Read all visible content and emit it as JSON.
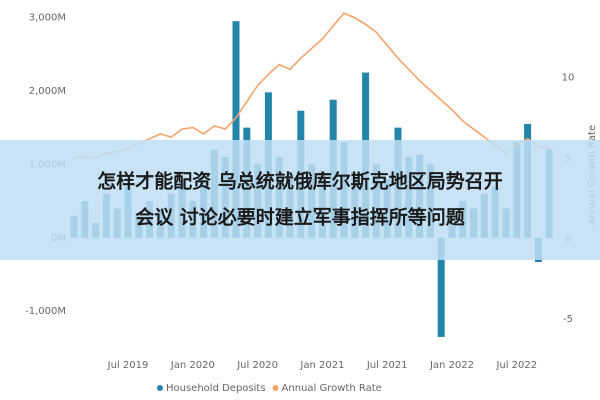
{
  "chart_data": {
    "type": "bar_line",
    "categories": [
      null,
      null,
      null,
      null,
      null,
      "Jul 2019",
      null,
      null,
      null,
      null,
      null,
      "Jan 2020",
      null,
      null,
      null,
      null,
      null,
      "Jul 2020",
      null,
      null,
      null,
      null,
      null,
      "Jan 2021",
      null,
      null,
      null,
      null,
      null,
      "Jul 2021",
      null,
      null,
      null,
      null,
      null,
      "Jan 2022",
      null,
      null,
      null,
      null,
      null,
      "Jul 2022",
      null,
      null,
      null
    ],
    "series": [
      {
        "name": "Household Deposits",
        "color": "#2386a8",
        "kind": "bar",
        "values": [
          300,
          500,
          200,
          600,
          400,
          700,
          300,
          500,
          400,
          600,
          800,
          500,
          900,
          1200,
          1100,
          2950,
          1500,
          1000,
          1980,
          1100,
          900,
          1730,
          1000,
          900,
          1880,
          1300,
          900,
          2250,
          1000,
          800,
          1500,
          1100,
          1130,
          1000,
          -1350,
          300,
          500,
          400,
          600,
          700,
          400,
          1300,
          1550,
          -330,
          1200
        ]
      },
      {
        "name": "Annual Growth Rate",
        "color": "#f4a46c",
        "kind": "line",
        "axis": "y2",
        "values": [
          5.0,
          5.1,
          5.0,
          5.3,
          5.4,
          5.6,
          5.9,
          6.2,
          6.5,
          6.3,
          6.8,
          6.9,
          6.5,
          7.0,
          6.8,
          7.5,
          8.5,
          9.5,
          10.2,
          10.8,
          10.5,
          11.2,
          11.8,
          12.4,
          13.2,
          14.0,
          13.7,
          13.3,
          12.8,
          12.0,
          11.2,
          10.5,
          9.8,
          9.2,
          8.6,
          8.0,
          7.3,
          6.8,
          6.3,
          5.8,
          5.3,
          5.8,
          6.2,
          5.7,
          5.6
        ]
      }
    ],
    "ylim": [
      -1460,
      3170
    ],
    "yticks": [
      {
        "value": -1000,
        "label": "-1,000M"
      },
      {
        "value": 0,
        "label": "0M"
      },
      {
        "value": 1000,
        "label": "1,000M"
      },
      {
        "value": 2000,
        "label": "2,000M"
      },
      {
        "value": 3000,
        "label": "3,000M"
      }
    ],
    "y2lim": [
      -6.6,
      14.5
    ],
    "y2ticks": [
      -5,
      0,
      5,
      10
    ],
    "y2_label": "Annual Growth Rate",
    "grid": false,
    "legend": "bottom"
  },
  "overlay": {
    "lines": [
      "怎样才能配资 乌总统就俄库尔斯克地区局势召开",
      "会议 讨论必要时建立军事指挥所等问题"
    ]
  }
}
